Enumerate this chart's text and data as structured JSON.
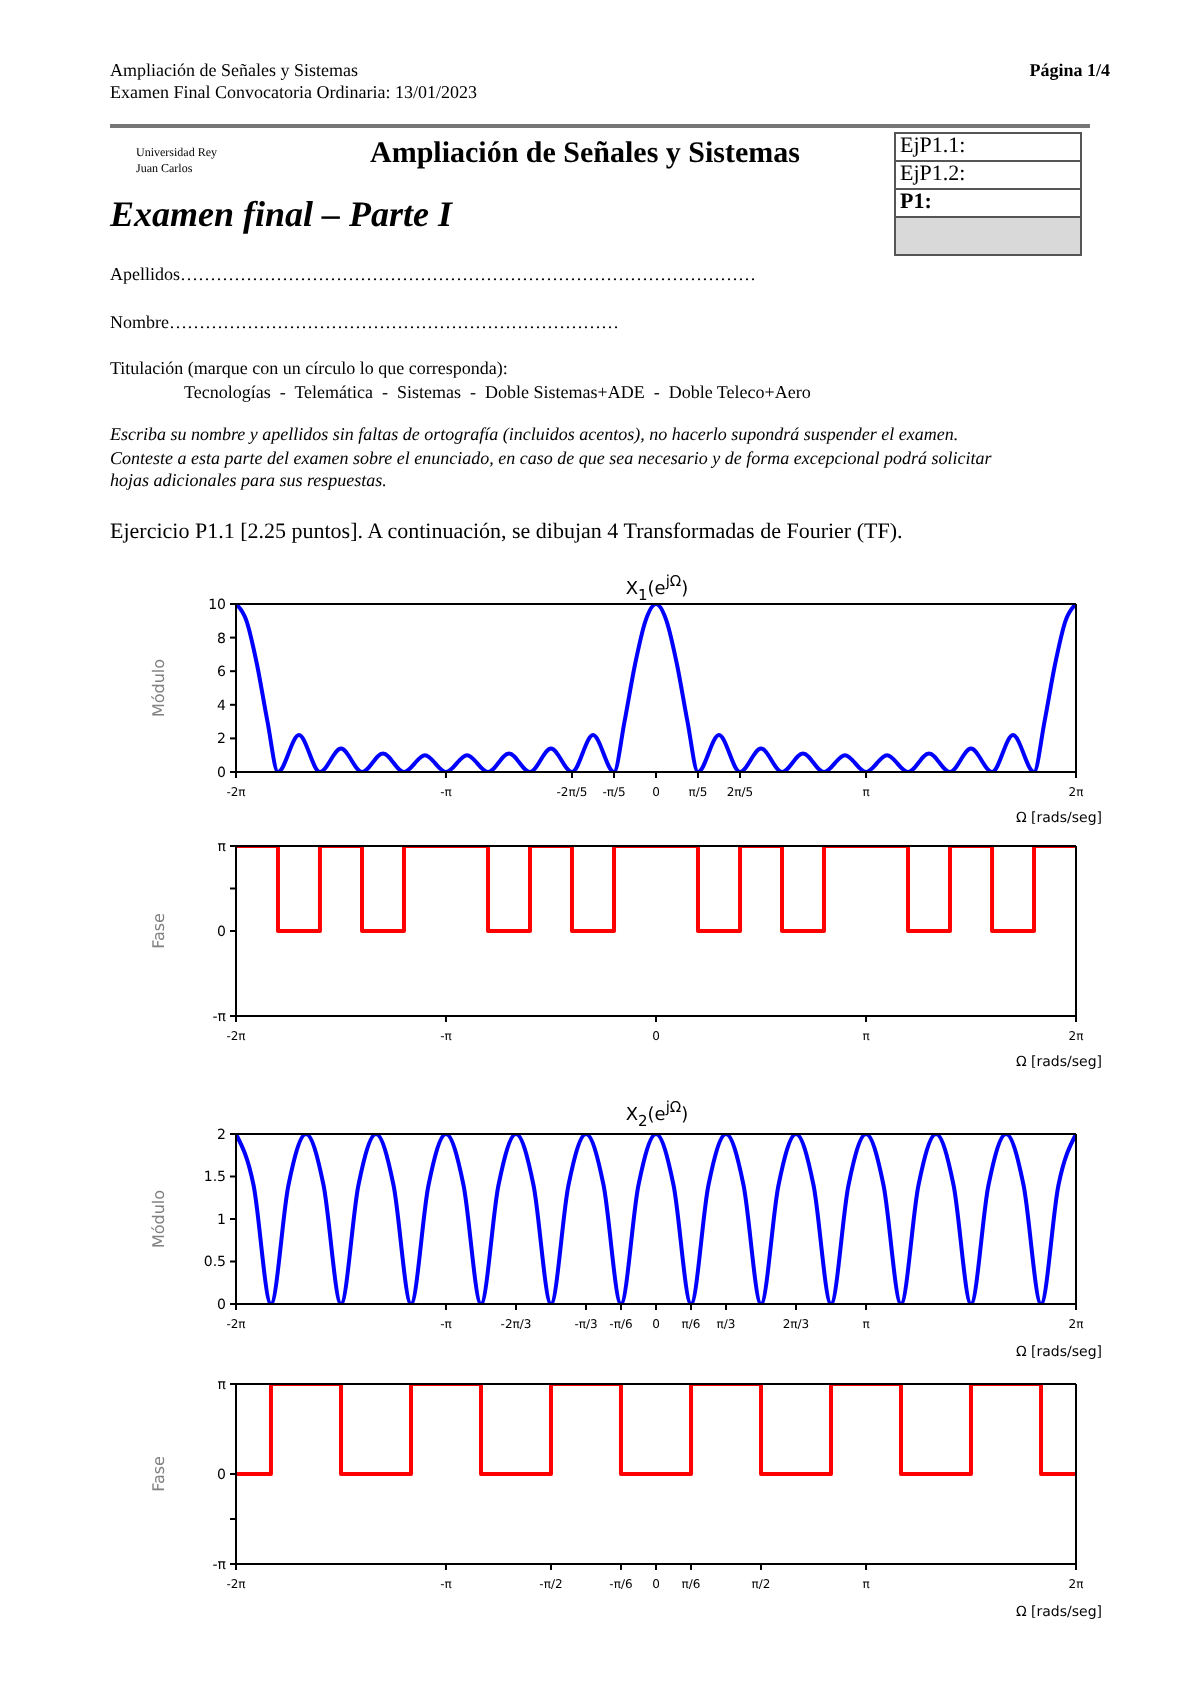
{
  "chart_data": [
    {
      "type": "other",
      "annotations": [
        "Ampliación de Señales y Sistemas",
        "Examen Final Convocatoria Ordinaria: 13/01/2023",
        "Página 1/4",
        "Universidad Rey Juan Carlos",
        "Ampliación de Señales y Sistemas",
        "EjP1.1:",
        "EjP1.2:",
        "P1:",
        "Examen final – Parte I",
        "Apellidos……………………………………………………………………………………",
        "Nombre…………………………………………………………………",
        "Titulación (marque con un círculo lo que corresponda):",
        "Tecnologías  -  Telemática  -  Sistemas  -  Doble Sistemas+ADE  -  Doble Teleco+Aero",
        "Escriba su nombre y apellidos sin faltas de ortografía (incluidos acentos), no hacerlo supondrá suspender el examen.",
        "Conteste a esta parte del examen sobre el enunciado, en caso de que sea necesario y de forma excepcional podrá solicitar hojas adicionales para sus respuestas.",
        "Ejercicio P1.1 [2.25 puntos]. A continuación, se dibujan 4 Transformadas de Fourier (TF)."
      ]
    },
    {
      "type": "line",
      "title": "X$_{1}$(e$^{jΩ}$)",
      "xlabel": "Ω [rads/seg]",
      "ylabel": "Módulo",
      "color": "#0000ff",
      "x": [
        -6.283,
        -6.126,
        -5.969,
        -5.812,
        -5.655,
        -5.341,
        -5.027,
        -4.712,
        -4.398,
        -4.084,
        -3.77,
        -3.456,
        -3.142,
        -2.827,
        -2.513,
        -2.199,
        -1.885,
        -1.571,
        -1.257,
        -0.942,
        -0.628,
        -0.471,
        -0.314,
        -0.157,
        0,
        0.157,
        0.314,
        0.471,
        0.628,
        0.942,
        1.257,
        1.571,
        1.885,
        2.199,
        2.513,
        2.827,
        3.142,
        3.456,
        3.77,
        4.084,
        4.398,
        4.712,
        5.027,
        5.341,
        5.655,
        5.812,
        5.969,
        6.126,
        6.283
      ],
      "values": [
        10,
        9.0,
        6.4,
        3.0,
        0,
        2.2,
        0,
        1.4,
        0,
        1.1,
        0,
        1.0,
        0,
        1.0,
        0,
        1.1,
        0,
        1.4,
        0,
        2.2,
        0,
        3.0,
        6.4,
        9.0,
        10,
        9.0,
        6.4,
        3.0,
        0,
        2.2,
        0,
        1.4,
        0,
        1.1,
        0,
        1.0,
        0,
        1.0,
        0,
        1.1,
        0,
        1.4,
        0,
        2.2,
        0,
        3.0,
        6.4,
        9.0,
        10
      ],
      "xlim": [
        -6.283,
        6.283
      ],
      "xticks": [
        {
          "value": -6.283,
          "label": "-2π"
        },
        {
          "value": -3.142,
          "label": "-π"
        },
        {
          "value": -1.257,
          "label": "-2π/5"
        },
        {
          "value": -0.628,
          "label": "-π/5"
        },
        {
          "value": 0,
          "label": "0"
        },
        {
          "value": 0.628,
          "label": "π/5"
        },
        {
          "value": 1.257,
          "label": "2π/5"
        },
        {
          "value": 3.142,
          "label": "π"
        },
        {
          "value": 6.283,
          "label": "2π"
        }
      ],
      "ylim": [
        0,
        10
      ],
      "yticks": [
        0,
        2,
        4,
        6,
        8,
        10
      ]
    },
    {
      "type": "step",
      "xlabel": "Ω [rads/seg]",
      "ylabel": "Fase",
      "color": "#ff0000",
      "x": [
        -6.283,
        -5.655,
        -5.027,
        -4.398,
        -3.77,
        -2.513,
        -1.885,
        -1.257,
        -0.628,
        0.628,
        1.257,
        1.885,
        2.513,
        3.77,
        4.398,
        5.027,
        5.655,
        6.283
      ],
      "values": [
        3.14,
        0,
        3.14,
        0,
        3.14,
        0,
        3.14,
        0,
        3.14,
        0,
        3.14,
        0,
        3.14,
        0,
        3.14,
        0,
        3.14,
        3.14
      ],
      "xlim": [
        -6.283,
        6.283
      ],
      "xticks": [
        {
          "value": -6.283,
          "label": "-2π"
        },
        {
          "value": -3.142,
          "label": "-π"
        },
        {
          "value": 0,
          "label": "0"
        },
        {
          "value": 3.142,
          "label": "π"
        },
        {
          "value": 6.283,
          "label": "2π"
        }
      ],
      "ylim": [
        -3.142,
        3.142
      ],
      "yticks": [
        {
          "value": -3.142,
          "label": "-π"
        },
        0,
        {
          "value": 1.571,
          "label": null
        },
        {
          "value": 3.142,
          "label": "π"
        }
      ]
    },
    {
      "type": "line",
      "title": "X$_{2}$(e$^{jΩ}$)",
      "xlabel": "Ω [rads/seg]",
      "ylabel": "Módulo",
      "color": "#0000ff",
      "x": [
        -6.283,
        -6.021,
        -5.76,
        -5.498,
        -5.236,
        -4.974,
        -4.712,
        -4.451,
        -4.189,
        -3.927,
        -3.665,
        -3.403,
        -3.142,
        -2.88,
        -2.618,
        -2.356,
        -2.094,
        -1.833,
        -1.571,
        -1.309,
        -1.047,
        -0.785,
        -0.524,
        -0.262,
        0,
        0.262,
        0.524,
        0.785,
        1.047,
        1.309,
        1.571,
        1.833,
        2.094,
        2.356,
        2.618,
        2.88,
        3.142,
        3.403,
        3.665,
        3.927,
        4.189,
        4.451,
        4.712,
        4.974,
        5.236,
        5.498,
        5.76,
        6.021,
        6.283
      ],
      "values": [
        2,
        1.4,
        0,
        1.4,
        2,
        1.4,
        0,
        1.4,
        2,
        1.4,
        0,
        1.4,
        2,
        1.4,
        0,
        1.4,
        2,
        1.4,
        0,
        1.4,
        2,
        1.4,
        0,
        1.4,
        2,
        1.4,
        0,
        1.4,
        2,
        1.4,
        0,
        1.4,
        2,
        1.4,
        0,
        1.4,
        2,
        1.4,
        0,
        1.4,
        2,
        1.4,
        0,
        1.4,
        2,
        1.4,
        0,
        1.4,
        2
      ],
      "xlim": [
        -6.283,
        6.283
      ],
      "xticks": [
        {
          "value": -6.283,
          "label": "-2π"
        },
        {
          "value": -3.142,
          "label": "-π"
        },
        {
          "value": -2.094,
          "label": "-2π/3"
        },
        {
          "value": -1.047,
          "label": "-π/3"
        },
        {
          "value": -0.524,
          "label": "-π/6"
        },
        {
          "value": 0,
          "label": "0"
        },
        {
          "value": 0.524,
          "label": "π/6"
        },
        {
          "value": 1.047,
          "label": "π/3"
        },
        {
          "value": 2.094,
          "label": "2π/3"
        },
        {
          "value": 3.142,
          "label": "π"
        },
        {
          "value": 6.283,
          "label": "2π"
        }
      ],
      "ylim": [
        0,
        2
      ],
      "yticks": [
        0,
        0.5,
        1,
        1.5,
        2
      ]
    },
    {
      "type": "step",
      "xlabel": "Ω [rads/seg]",
      "ylabel": "Fase",
      "color": "#ff0000",
      "x": [
        -6.283,
        -5.76,
        -4.712,
        -3.665,
        -2.618,
        -1.571,
        -0.524,
        0.524,
        1.571,
        2.618,
        3.665,
        4.712,
        5.76,
        6.283
      ],
      "values": [
        0,
        3.14,
        0,
        3.14,
        0,
        3.14,
        0,
        3.14,
        0,
        3.14,
        0,
        3.14,
        0,
        0
      ],
      "xlim": [
        -6.283,
        6.283
      ],
      "xticks": [
        {
          "value": -6.283,
          "label": "-2π"
        },
        {
          "value": -3.142,
          "label": "-π"
        },
        {
          "value": -1.571,
          "label": "-π/2"
        },
        {
          "value": -0.524,
          "label": "-π/6"
        },
        {
          "value": 0,
          "label": "0"
        },
        {
          "value": 0.524,
          "label": "π/6"
        },
        {
          "value": 1.571,
          "label": "π/2"
        },
        {
          "value": 3.142,
          "label": "π"
        },
        {
          "value": 6.283,
          "label": "2π"
        }
      ],
      "ylim": [
        -3.142,
        3.142
      ],
      "yticks": [
        {
          "value": -3.142,
          "label": "-π"
        },
        {
          "value": -1.571,
          "label": null
        },
        0,
        {
          "value": 3.142,
          "label": "π"
        }
      ]
    }
  ]
}
